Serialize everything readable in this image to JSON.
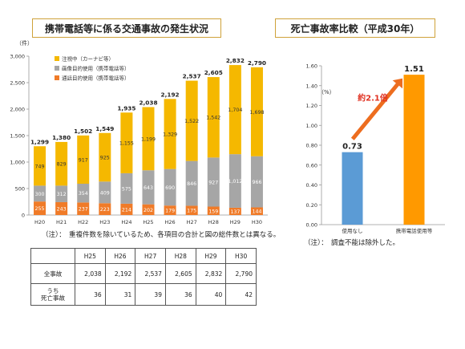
{
  "left": {
    "title": "携帯電話等に係る交通事故の発生状況",
    "unit_label": "（件）",
    "note": "（注）：　重複件数を除いているため、各項目の合計と図の総件数とは異なる。"
  },
  "right": {
    "title": "死亡事故率比較（平成30年）",
    "unit_label": "（%）",
    "note": "（注）：　調査不能は除外した。",
    "ratio_label": "約2.1倍"
  },
  "colors": {
    "gaze": "#f5b800",
    "image": "#a6a6a6",
    "call": "#f07b28",
    "none": "#5b9bd5",
    "mobile": "#ff9900",
    "arrow": "#ed6d1f",
    "ratio_text": "#e03020"
  },
  "chart_data": [
    {
      "type": "bar",
      "stacked": true,
      "categories": [
        "H20",
        "H21",
        "H22",
        "H23",
        "H24",
        "H25",
        "H26",
        "H27",
        "H28",
        "H29",
        "H30"
      ],
      "series": [
        {
          "name": "通話目的使用（携帯電話等）",
          "values": [
            255,
            243,
            237,
            223,
            214,
            202,
            179,
            175,
            159,
            137,
            144
          ]
        },
        {
          "name": "画像目的使用（携帯電話等）",
          "values": [
            300,
            312,
            354,
            409,
            575,
            643,
            690,
            846,
            927,
            1012,
            966
          ]
        },
        {
          "name": "注視中（カーナビ等）",
          "values": [
            749,
            829,
            917,
            925,
            1155,
            1199,
            1329,
            1522,
            1542,
            1704,
            1698
          ]
        }
      ],
      "series_labels": [
        [
          "255",
          "243",
          "237",
          "223",
          "214",
          "202",
          "179",
          "175",
          "159",
          "137",
          "144"
        ],
        [
          "300",
          "312",
          "354",
          "409",
          "575",
          "643",
          "690",
          "846",
          "927",
          "1,012",
          "966"
        ],
        [
          "749",
          "829",
          "917",
          "925",
          "1,155",
          "1,199",
          "1,329",
          "1,522",
          "1,542",
          "1,704",
          "1,698"
        ]
      ],
      "totals": [
        1299,
        1380,
        1502,
        1549,
        1935,
        2038,
        2192,
        2537,
        2605,
        2832,
        2790
      ],
      "total_labels": [
        "1,299",
        "1,380",
        "1,502",
        "1,549",
        "1,935",
        "2,038",
        "2,192",
        "2,537",
        "2,605",
        "2,832",
        "2,790"
      ],
      "ylim": [
        0,
        3000
      ],
      "yticks": [
        "0",
        "500",
        "1,000",
        "1,500",
        "2,000",
        "2,500",
        "3,000"
      ],
      "legend_position": "top-left",
      "grid": false
    },
    {
      "type": "bar",
      "categories": [
        "使用なし",
        "携帯電話使用等"
      ],
      "values": [
        0.73,
        1.51
      ],
      "value_labels": [
        "0.73",
        "1.51"
      ],
      "ylim": [
        0,
        1.6
      ],
      "yticks": [
        "0.00",
        "0.20",
        "0.40",
        "0.60",
        "0.80",
        "1.00",
        "1.20",
        "1.40",
        "1.60"
      ],
      "grid": false
    }
  ],
  "table": {
    "headers": [
      "",
      "H25",
      "H26",
      "H27",
      "H28",
      "H29",
      "H30"
    ],
    "rows": [
      {
        "label": "全事故",
        "values": [
          "2,038",
          "2,192",
          "2,537",
          "2,605",
          "2,832",
          "2,790"
        ]
      },
      {
        "label_line1": "うち",
        "label_line2": "死亡事故",
        "values": [
          "36",
          "31",
          "39",
          "36",
          "40",
          "42"
        ]
      }
    ]
  }
}
